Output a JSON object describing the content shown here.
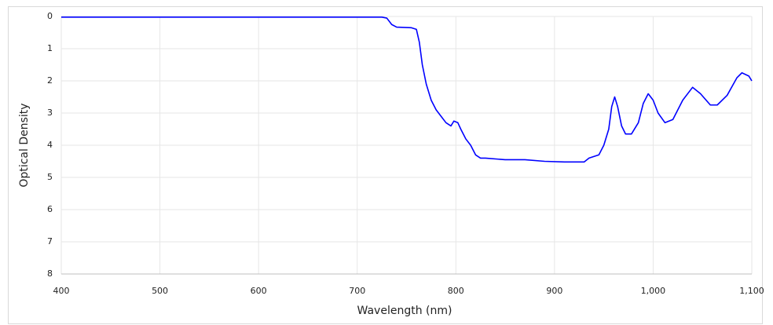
{
  "chart_data": {
    "type": "line",
    "x_label": "Wavelength (nm)",
    "y_label": "Optical Density",
    "x": [
      400,
      500,
      600,
      700,
      725,
      730,
      735,
      740,
      755,
      760,
      763,
      766,
      770,
      775,
      780,
      785,
      790,
      795,
      798,
      802,
      805,
      810,
      815,
      820,
      825,
      830,
      850,
      870,
      890,
      910,
      930,
      935,
      945,
      950,
      955,
      958,
      961,
      964,
      968,
      972,
      978,
      985,
      990,
      995,
      1000,
      1005,
      1012,
      1020,
      1030,
      1040,
      1048,
      1058,
      1065,
      1075,
      1085,
      1090,
      1097,
      1100
    ],
    "series": [
      {
        "name": "Optical Density",
        "color": "#0000ff",
        "values": [
          0.02,
          0.02,
          0.02,
          0.02,
          0.02,
          0.05,
          0.25,
          0.33,
          0.35,
          0.4,
          0.8,
          1.5,
          2.1,
          2.6,
          2.9,
          3.1,
          3.3,
          3.4,
          3.25,
          3.3,
          3.5,
          3.8,
          4.0,
          4.3,
          4.4,
          4.4,
          4.45,
          4.45,
          4.5,
          4.52,
          4.52,
          4.4,
          4.3,
          4.0,
          3.5,
          2.8,
          2.5,
          2.8,
          3.4,
          3.65,
          3.65,
          3.3,
          2.7,
          2.4,
          2.6,
          3.0,
          3.3,
          3.2,
          2.6,
          2.2,
          2.4,
          2.75,
          2.75,
          2.45,
          1.9,
          1.75,
          1.85,
          2.0
        ]
      }
    ],
    "xlim": [
      400,
      1100
    ],
    "xticks": [
      400,
      500,
      600,
      700,
      800,
      900,
      {
        "value": 1000,
        "label": "1,000"
      },
      {
        "value": 1100,
        "label": "1,100"
      }
    ],
    "ylim": [
      0,
      8
    ],
    "y_inverted": true,
    "yticks": [
      0,
      1,
      2,
      3,
      4,
      5,
      6,
      7,
      8
    ],
    "grid": true
  }
}
